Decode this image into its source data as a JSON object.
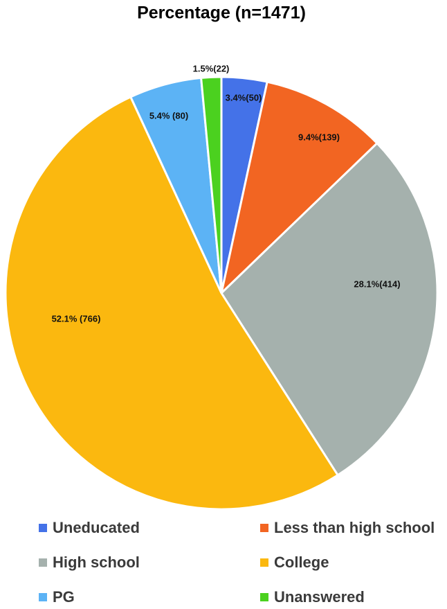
{
  "chart_data": {
    "type": "pie",
    "title": "Percentage (n=1471)",
    "categories": [
      "Uneducated",
      "Less than high school",
      "High school",
      "College",
      "PG",
      "Unanswered"
    ],
    "values": [
      3.4,
      9.4,
      28.1,
      52.1,
      5.4,
      1.5
    ],
    "value_labels": [
      "3.4%(50)",
      "9.4%(139)",
      "28.1%(414)",
      "52.1% (766)",
      "5.4% (80)",
      "1.5%(22)"
    ],
    "colors": [
      "#4472e8",
      "#f26522",
      "#a5b1ad",
      "#fbb80f",
      "#5cb3f5",
      "#4bd11f"
    ],
    "legend": "bottom"
  }
}
